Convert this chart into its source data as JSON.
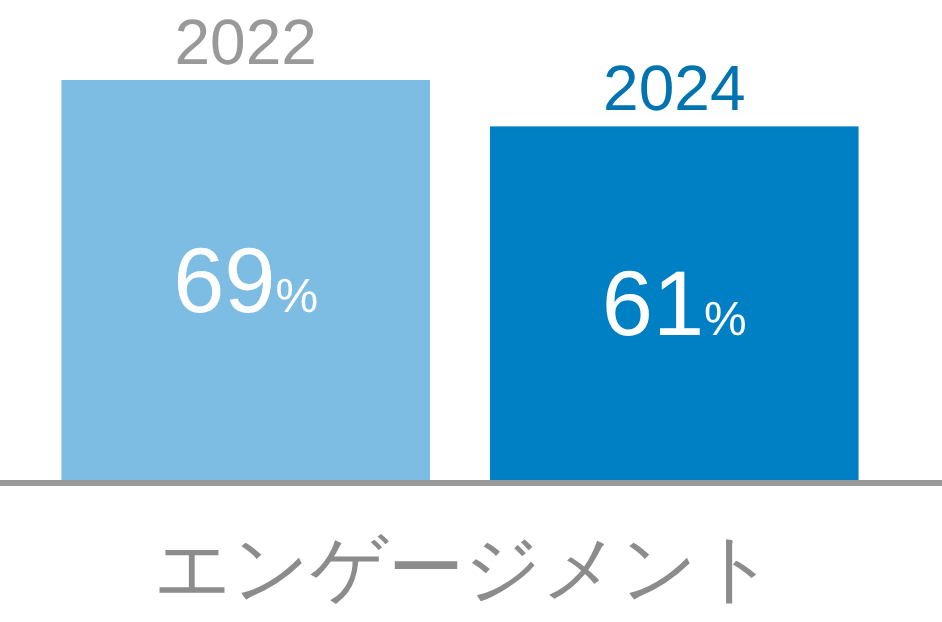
{
  "chart_data": {
    "type": "bar",
    "xlabel": "エンゲージメント",
    "categories": [
      "2022",
      "2024"
    ],
    "values": [
      69,
      61
    ],
    "colors": [
      "#7dbde3",
      "#0080c4"
    ],
    "ylim": [
      0,
      69
    ],
    "value_labels": [
      "69%",
      "61%"
    ],
    "tick_labels": "x"
  }
}
